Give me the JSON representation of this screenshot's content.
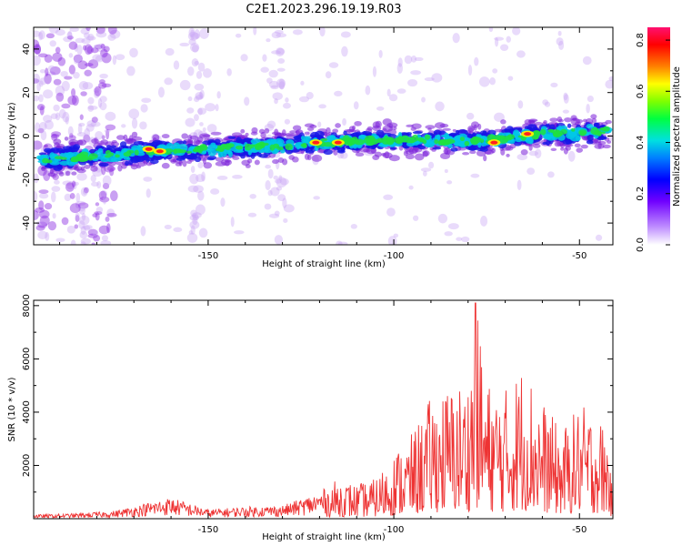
{
  "title": "C2E1.2023.296.19.19.R03",
  "chart_data": [
    {
      "type": "heatmap",
      "xlabel": "Height of straight line (km)",
      "ylabel": "Frequency (Hz)",
      "xlim": [
        -197,
        -41
      ],
      "ylim": [
        -50,
        50
      ],
      "x_ticks": [
        -150,
        -100,
        -50
      ],
      "y_ticks": [
        -40,
        -20,
        0,
        20,
        40
      ],
      "colorbar": {
        "label": "Normalized spectral amplitude",
        "range": [
          0,
          0.85
        ],
        "ticks": [
          0.0,
          0.2,
          0.4,
          0.6,
          0.8
        ]
      },
      "ridge": {
        "x": [
          -195,
          -180,
          -165,
          -150,
          -135,
          -120,
          -105,
          -90,
          -75,
          -60,
          -45,
          -42
        ],
        "y": [
          -11,
          -9,
          -7,
          -6,
          -5,
          -3,
          -2,
          -2,
          -2,
          1,
          2,
          2
        ]
      },
      "peak_points": [
        {
          "x": -166,
          "y": -6
        },
        {
          "x": -163,
          "y": -7
        },
        {
          "x": -121,
          "y": -3
        },
        {
          "x": -115,
          "y": -3
        },
        {
          "x": -73,
          "y": -3
        },
        {
          "x": -64,
          "y": 1
        }
      ],
      "grid": false
    },
    {
      "type": "line",
      "xlabel": "Height of straight line (km)",
      "ylabel": "SNR (10 * v/v)",
      "xlim": [
        -197,
        -41
      ],
      "ylim": [
        0,
        8200
      ],
      "x_ticks": [
        -150,
        -100,
        -50
      ],
      "y_ticks": [
        2000,
        4000,
        6000,
        8000
      ],
      "color": "#ee3333",
      "envelope": {
        "x": [
          -197,
          -185,
          -175,
          -165,
          -160,
          -150,
          -140,
          -130,
          -120,
          -115,
          -110,
          -105,
          -100,
          -95,
          -90,
          -85,
          -80,
          -78,
          -75,
          -70,
          -65,
          -60,
          -55,
          -50,
          -45,
          -42,
          -41
        ],
        "y": [
          150,
          200,
          300,
          650,
          800,
          350,
          450,
          500,
          1000,
          1500,
          1300,
          1500,
          2500,
          3200,
          4600,
          5000,
          5300,
          8100,
          5200,
          4900,
          6000,
          4500,
          3300,
          4300,
          4000,
          3100,
          400
        ]
      },
      "grid": false
    }
  ]
}
